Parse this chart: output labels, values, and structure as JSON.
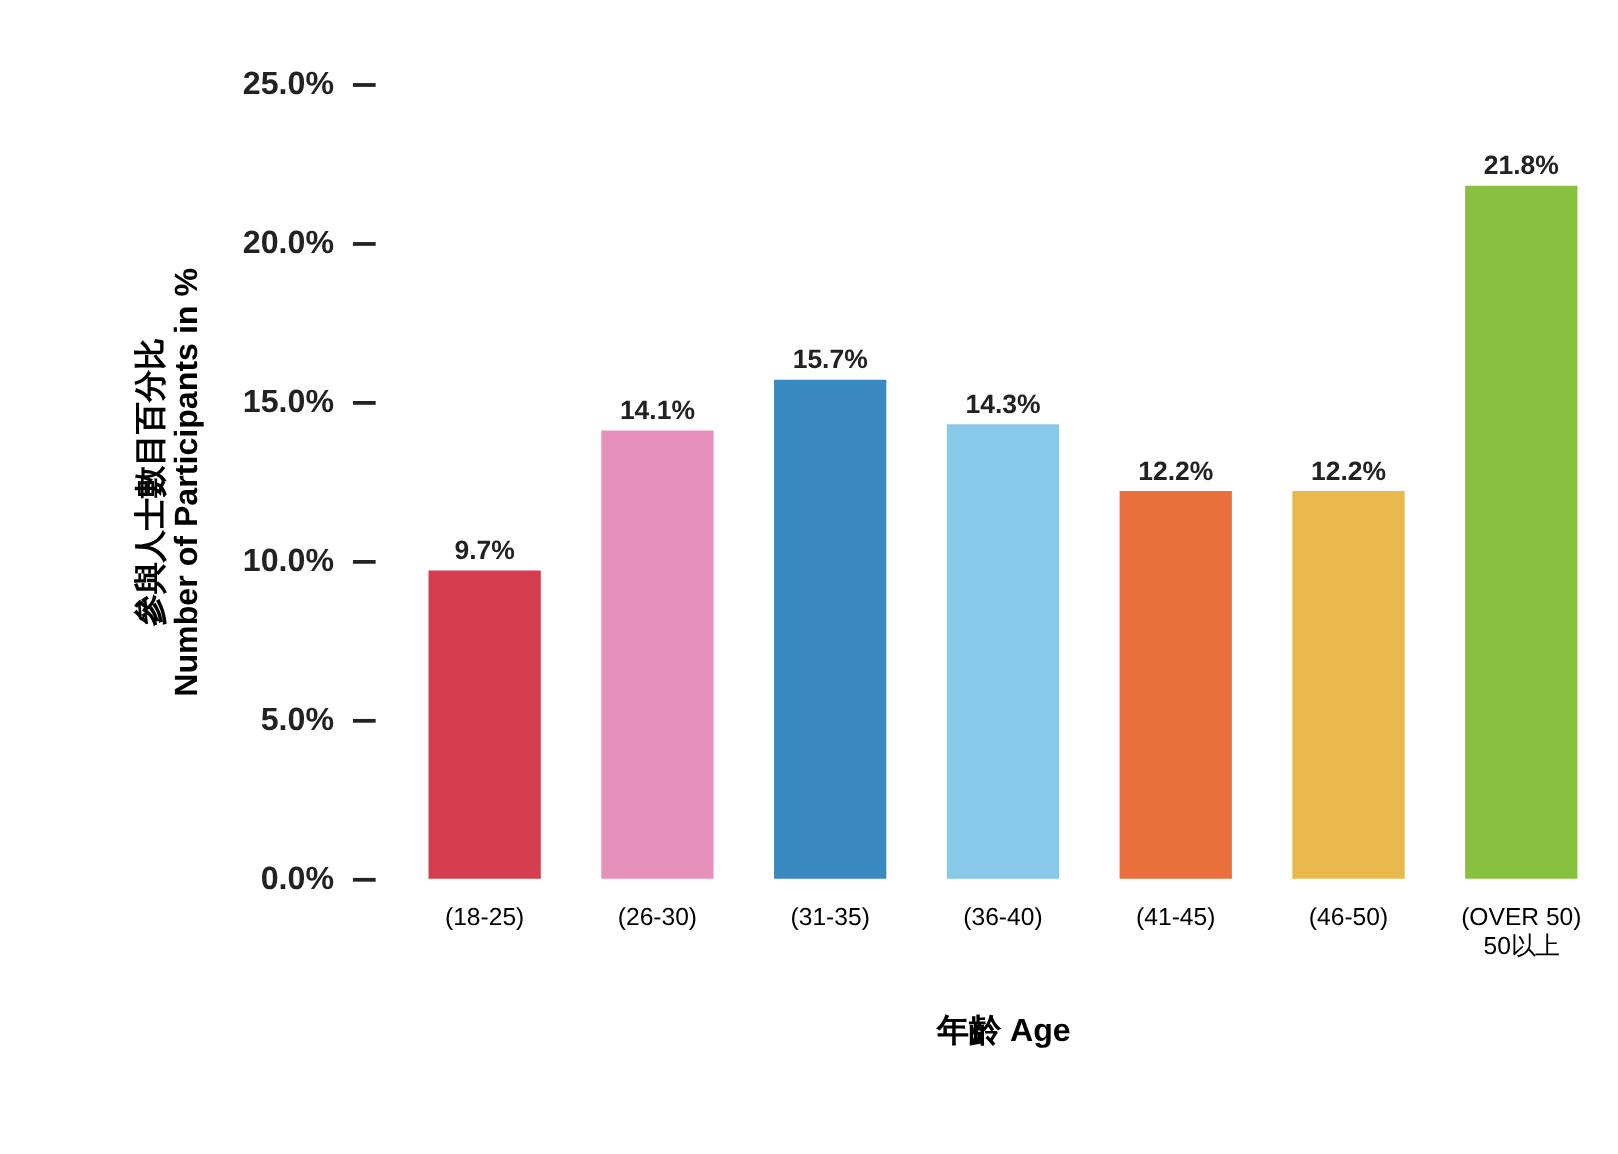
{
  "chart_data": {
    "type": "bar",
    "categories": [
      "(18-25)",
      "(26-30)",
      "(31-35)",
      "(36-40)",
      "(41-45)",
      "(46-50)",
      "(OVER 50)\n50以上"
    ],
    "values": [
      9.7,
      14.1,
      15.7,
      14.3,
      12.2,
      12.2,
      21.8
    ],
    "colors": [
      "#d63c50",
      "#e890bc",
      "#3a88c0",
      "#88c8e8",
      "#e8703c",
      "#e8b84c",
      "#88c040"
    ],
    "value_labels": [
      "9.7%",
      "14.1%",
      "15.7%",
      "14.3%",
      "12.2%",
      "12.2%",
      "21.8%"
    ],
    "xlabel": "年齡    Age",
    "ylabel": "參與人士數目百分比\nNumber of Participants in %",
    "ylim": [
      0,
      25
    ],
    "yticks": [
      {
        "value": 0,
        "label": "0.0%"
      },
      {
        "value": 5,
        "label": "5.0%"
      },
      {
        "value": 10,
        "label": "10.0%"
      },
      {
        "value": 15,
        "label": "15.0%"
      },
      {
        "value": 20,
        "label": "20.0%"
      },
      {
        "value": 25,
        "label": "25.0%"
      }
    ],
    "grid": false
  }
}
